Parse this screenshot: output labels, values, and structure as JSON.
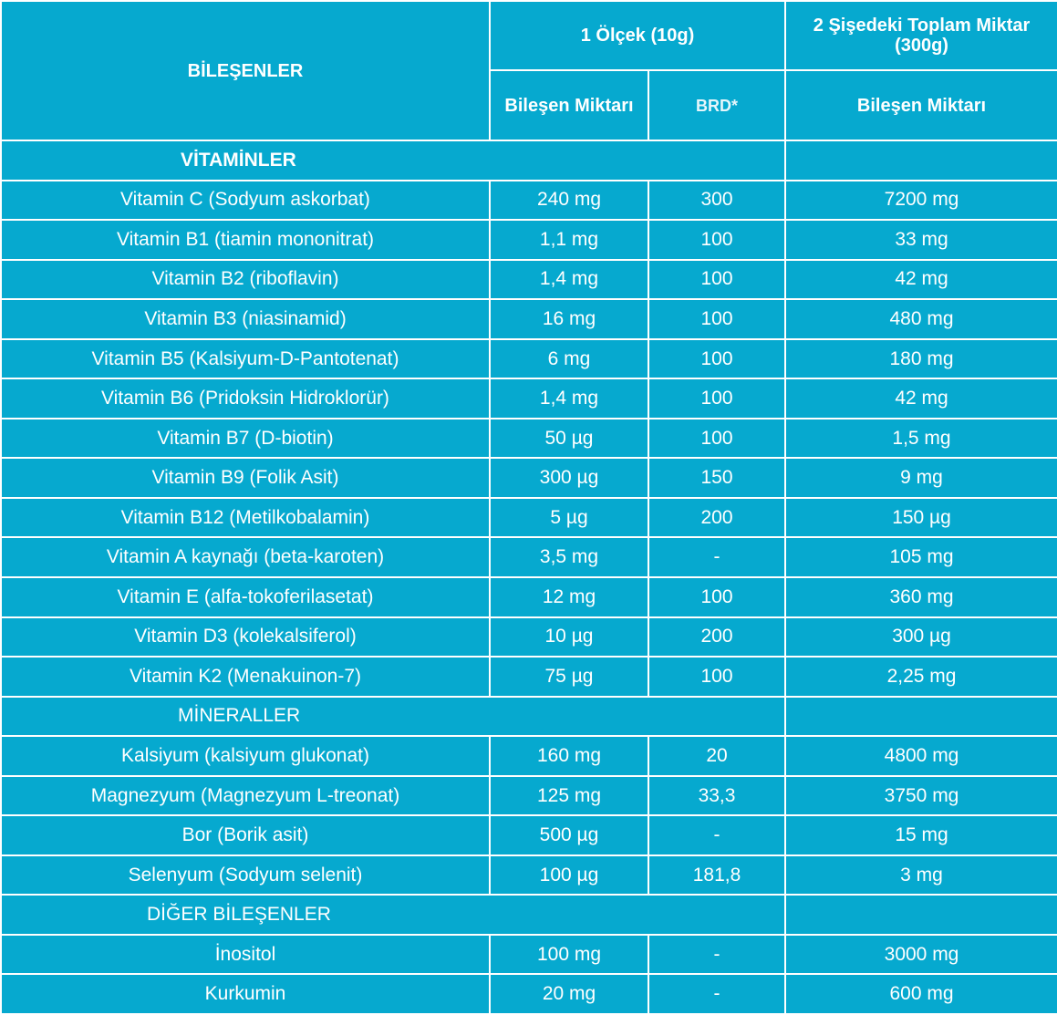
{
  "header": {
    "ingredients": "BİLEŞENLER",
    "per_scoop": "1 Ölçek (10g)",
    "total": "2 Şişedeki Toplam Miktar (300g)",
    "amount": "Bileşen Miktarı",
    "brd": "BRD*",
    "total_amount": "Bileşen Miktarı"
  },
  "sections": [
    {
      "title": "VİTAMİNLER",
      "rows": [
        {
          "name": "Vitamin C (Sodyum askorbat)",
          "amount": "240 mg",
          "brd": "300",
          "total": "7200 mg"
        },
        {
          "name": "Vitamin B1 (tiamin mononitrat)",
          "amount": "1,1 mg",
          "brd": "100",
          "total": "33 mg"
        },
        {
          "name": "Vitamin B2 (riboflavin)",
          "amount": "1,4 mg",
          "brd": "100",
          "total": "42 mg"
        },
        {
          "name": "Vitamin B3 (niasinamid)",
          "amount": "16 mg",
          "brd": "100",
          "total": "480 mg"
        },
        {
          "name": "Vitamin B5 (Kalsiyum-D-Pantotenat)",
          "amount": "6 mg",
          "brd": "100",
          "total": "180 mg"
        },
        {
          "name": "Vitamin B6 (Pridoksin Hidroklorür)",
          "amount": "1,4 mg",
          "brd": "100",
          "total": "42 mg"
        },
        {
          "name": "Vitamin B7 (D-biotin)",
          "amount": "50 µg",
          "brd": "100",
          "total": "1,5 mg"
        },
        {
          "name": "Vitamin B9 (Folik Asit)",
          "amount": "300 µg",
          "brd": "150",
          "total": "9 mg"
        },
        {
          "name": "Vitamin B12 (Metilkobalamin)",
          "amount": "5 µg",
          "brd": "200",
          "total": "150 µg"
        },
        {
          "name": "Vitamin A kaynağı (beta-karoten)",
          "amount": "3,5 mg",
          "brd": "-",
          "total": "105 mg"
        },
        {
          "name": "Vitamin E (alfa-tokoferilasetat)",
          "amount": "12 mg",
          "brd": "100",
          "total": "360 mg"
        },
        {
          "name": "Vitamin D3 (kolekalsiferol)",
          "amount": "10 µg",
          "brd": "200",
          "total": "300 µg"
        },
        {
          "name": "Vitamin K2 (Menakuinon-7)",
          "amount": "75 µg",
          "brd": "100",
          "total": "2,25 mg"
        }
      ]
    },
    {
      "title": "MİNERALLER",
      "rows": [
        {
          "name": "Kalsiyum (kalsiyum glukonat)",
          "amount": "160 mg",
          "brd": "20",
          "total": "4800 mg"
        },
        {
          "name": "Magnezyum (Magnezyum L-treonat)",
          "amount": "125 mg",
          "brd": "33,3",
          "total": "3750 mg"
        },
        {
          "name": "Bor (Borik asit)",
          "amount": "500 µg",
          "brd": "-",
          "total": "15 mg"
        },
        {
          "name": "Selenyum (Sodyum selenit)",
          "amount": "100 µg",
          "brd": "181,8",
          "total": "3 mg"
        }
      ]
    },
    {
      "title": "DİĞER BİLEŞENLER",
      "rows": [
        {
          "name": "İnositol",
          "amount": "100 mg",
          "brd": "-",
          "total": "3000 mg"
        },
        {
          "name": "Kurkumin",
          "amount": "20 mg",
          "brd": "-",
          "total": "600 mg"
        }
      ]
    }
  ]
}
